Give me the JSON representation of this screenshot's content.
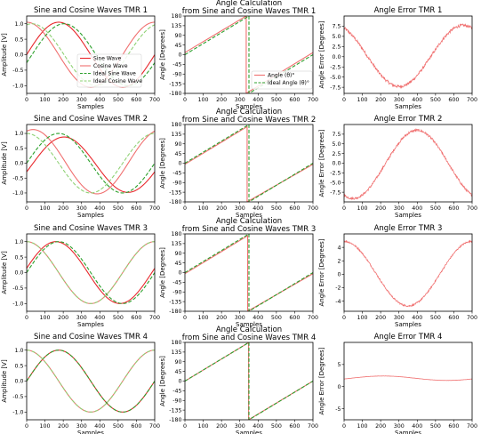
{
  "figure": {
    "x_label": "Samples",
    "x_ticks": [
      0,
      100,
      200,
      300,
      400,
      500,
      600,
      700
    ],
    "colors": {
      "sine": "#e8282d",
      "cosine": "#f07070",
      "ideal_sine": "#2ca02c",
      "ideal_cosine": "#8fd175",
      "angle": "#f07070",
      "ideal_angle": "#2ca02c",
      "error": "#f07070"
    }
  },
  "chart_data": [
    {
      "type": "line",
      "row": 0,
      "title": "Sine and Cosine Waves TMR 1",
      "xlabel": "Samples",
      "ylabel": "Amplitude [V]",
      "xlim": [
        0,
        700
      ],
      "ylim": [
        -1.25,
        1.25
      ],
      "yticks": [
        -1.0,
        -0.5,
        0.0,
        0.5,
        1.0
      ],
      "series": [
        {
          "name": "Sine Wave",
          "color": "#e8282d",
          "amplitude": 1.05,
          "period": 700,
          "phase_deg": 0,
          "offset": 0
        },
        {
          "name": "Cosine Wave",
          "color": "#f07070",
          "amplitude": 1.05,
          "period": 700,
          "phase_deg": 90,
          "offset": 0
        },
        {
          "name": "Ideal Sine Wave",
          "color": "#2ca02c",
          "dash": true,
          "amplitude": 1.0,
          "period": 700,
          "phase_deg": -15,
          "offset": 0
        },
        {
          "name": "Ideal Cosine Wave",
          "color": "#8fd175",
          "dash": true,
          "amplitude": 1.0,
          "period": 700,
          "phase_deg": 75,
          "offset": 0
        }
      ],
      "legend": {
        "placement": "lower-left",
        "entries": [
          "Sine Wave",
          "Cosine Wave",
          "Ideal Sine Wave",
          "Ideal Cosine Wave"
        ]
      }
    },
    {
      "type": "line",
      "row": 0,
      "title": "Angle Calculation\nfrom Sine and Cosine Waves TMR 1",
      "xlabel": "Samples",
      "ylabel": "Angle [Degrees]",
      "xlim": [
        0,
        700
      ],
      "ylim": [
        -180,
        180
      ],
      "yticks": [
        180,
        135,
        90,
        45,
        0,
        -45,
        -90,
        -135,
        -180
      ],
      "series": [
        {
          "name": "Angle (θ)°",
          "color": "#f07070",
          "wrap_at": 335,
          "start": 10
        },
        {
          "name": "Ideal Angle (θ)°",
          "color": "#2ca02c",
          "dash": true,
          "wrap_at": 350,
          "start": 0
        }
      ],
      "legend": {
        "placement": "lower-right",
        "entries": [
          "Angle (θ)°",
          "Ideal Angle (θ)°"
        ]
      }
    },
    {
      "type": "line",
      "row": 0,
      "title": "Angle Error TMR 1",
      "xlabel": "Samples",
      "ylabel": "Angle Error [Degrees]",
      "xlim": [
        0,
        700
      ],
      "ylim": [
        -9,
        10
      ],
      "yticks": [
        -7.5,
        -5.0,
        -2.5,
        0.0,
        2.5,
        5.0,
        7.5
      ],
      "series": [
        {
          "name": "Angle Error",
          "color": "#f07070",
          "amplitude": 7.5,
          "period": 700,
          "phase_deg": 115,
          "offset": 0.2,
          "noise": 0.35
        }
      ]
    },
    {
      "type": "line",
      "row": 1,
      "title": "Sine and Cosine Waves TMR 2",
      "xlabel": "Samples",
      "ylabel": "Amplitude [V]",
      "xlim": [
        0,
        700
      ],
      "ylim": [
        -1.3,
        1.3
      ],
      "yticks": [
        -1.0,
        -0.5,
        0.0,
        0.5,
        1.0
      ],
      "series": [
        {
          "name": "Sine Wave",
          "color": "#e8282d",
          "amplitude": 0.93,
          "period": 700,
          "phase_deg": -15,
          "offset": -0.05
        },
        {
          "name": "Cosine Wave",
          "color": "#f07070",
          "amplitude": 1.08,
          "period": 700,
          "phase_deg": 72,
          "offset": 0.05
        },
        {
          "name": "Ideal Sine Wave",
          "color": "#2ca02c",
          "dash": true,
          "amplitude": 1.0,
          "period": 700,
          "phase_deg": 0,
          "offset": 0
        },
        {
          "name": "Ideal Cosine Wave",
          "color": "#8fd175",
          "dash": true,
          "amplitude": 1.0,
          "period": 700,
          "phase_deg": 90,
          "offset": 0
        }
      ]
    },
    {
      "type": "line",
      "row": 1,
      "title": "Angle Calculation\nfrom Sine and Cosine Waves TMR 2",
      "xlabel": "Samples",
      "ylabel": "Angle [Degrees]",
      "xlim": [
        0,
        700
      ],
      "ylim": [
        -180,
        180
      ],
      "yticks": [
        180,
        135,
        90,
        45,
        0,
        -45,
        -90,
        -135,
        -180
      ],
      "series": [
        {
          "name": "Angle (θ)°",
          "color": "#f07070",
          "wrap_at": 340,
          "start": -5
        },
        {
          "name": "Ideal Angle (θ)°",
          "color": "#2ca02c",
          "dash": true,
          "wrap_at": 350,
          "start": 0
        }
      ]
    },
    {
      "type": "line",
      "row": 1,
      "title": "Angle Error TMR 2",
      "xlabel": "Samples",
      "ylabel": "Angle Error [Degrees]",
      "xlim": [
        0,
        700
      ],
      "ylim": [
        -10,
        10
      ],
      "yticks": [
        -7.5,
        -5.0,
        -2.5,
        0.0,
        2.5,
        5.0,
        7.5
      ],
      "series": [
        {
          "name": "Angle Error",
          "color": "#f07070",
          "amplitude": 8.8,
          "period": 700,
          "phase_deg": -115,
          "offset": -0.3,
          "noise": 0.3
        }
      ]
    },
    {
      "type": "line",
      "row": 2,
      "title": "Sine and Cosine Waves TMR 3",
      "xlabel": "Samples",
      "ylabel": "Amplitude [V]",
      "xlim": [
        0,
        700
      ],
      "ylim": [
        -1.25,
        1.25
      ],
      "yticks": [
        -1.0,
        -0.5,
        0.0,
        0.5,
        1.0
      ],
      "series": [
        {
          "name": "Sine Wave",
          "color": "#e8282d",
          "amplitude": 1.0,
          "period": 700,
          "phase_deg": 8,
          "offset": 0
        },
        {
          "name": "Cosine Wave",
          "color": "#f07070",
          "amplitude": 1.0,
          "period": 700,
          "phase_deg": 90,
          "offset": 0
        },
        {
          "name": "Ideal Sine Wave",
          "color": "#2ca02c",
          "dash": true,
          "amplitude": 1.0,
          "period": 700,
          "phase_deg": 0,
          "offset": 0
        },
        {
          "name": "Ideal Cosine Wave",
          "color": "#8fd175",
          "dash": true,
          "amplitude": 1.0,
          "period": 700,
          "phase_deg": 90,
          "offset": 0
        }
      ]
    },
    {
      "type": "line",
      "row": 2,
      "title": "Angle Calculation\nfrom Sine and Cosine Waves TMR 3",
      "xlabel": "Samples",
      "ylabel": "Angle [Degrees]",
      "xlim": [
        0,
        700
      ],
      "ylim": [
        -180,
        180
      ],
      "yticks": [
        180,
        135,
        90,
        45,
        0,
        -45,
        -90,
        -135,
        -180
      ],
      "series": [
        {
          "name": "Angle (θ)°",
          "color": "#f07070",
          "wrap_at": 343,
          "start": -5
        },
        {
          "name": "Ideal Angle (θ)°",
          "color": "#2ca02c",
          "dash": true,
          "wrap_at": 350,
          "start": 0
        }
      ]
    },
    {
      "type": "line",
      "row": 2,
      "title": "Angle Error TMR 3",
      "xlabel": "Samples",
      "ylabel": "Angle Error [Degrees]",
      "xlim": [
        0,
        700
      ],
      "ylim": [
        -5.5,
        6
      ],
      "yticks": [
        -4,
        -2,
        0,
        2,
        4
      ],
      "series": [
        {
          "name": "Angle Error",
          "color": "#f07070",
          "amplitude": 4.8,
          "period": 700,
          "phase_deg": 90,
          "offset": 0.1,
          "noise": 0.12
        }
      ]
    },
    {
      "type": "line",
      "row": 3,
      "title": "Sine and Cosine Waves TMR 4",
      "xlabel": "Samples",
      "ylabel": "Amplitude [V]",
      "xlim": [
        0,
        700
      ],
      "ylim": [
        -1.25,
        1.25
      ],
      "yticks": [
        -1.0,
        -0.5,
        0.0,
        0.5,
        1.0
      ],
      "series": [
        {
          "name": "Sine Wave",
          "color": "#e8282d",
          "amplitude": 1.0,
          "period": 700,
          "phase_deg": 0,
          "offset": 0
        },
        {
          "name": "Cosine Wave",
          "color": "#f07070",
          "amplitude": 1.0,
          "period": 700,
          "phase_deg": 90,
          "offset": 0
        },
        {
          "name": "Ideal Sine Wave",
          "color": "#2ca02c",
          "dash": true,
          "amplitude": 1.0,
          "period": 700,
          "phase_deg": 0,
          "offset": 0
        },
        {
          "name": "Ideal Cosine Wave",
          "color": "#8fd175",
          "dash": true,
          "amplitude": 1.0,
          "period": 700,
          "phase_deg": 90,
          "offset": 0
        }
      ]
    },
    {
      "type": "line",
      "row": 3,
      "title": "Angle Calculation\nfrom Sine and Cosine Waves TMR 4",
      "xlabel": "Samples",
      "ylabel": "Angle [Degrees]",
      "xlim": [
        0,
        700
      ],
      "ylim": [
        -180,
        180
      ],
      "yticks": [
        180,
        135,
        90,
        45,
        0,
        -45,
        -90,
        -135,
        -180
      ],
      "series": [
        {
          "name": "Angle (θ)°",
          "color": "#f07070",
          "wrap_at": 348,
          "start": 0
        },
        {
          "name": "Ideal Angle (θ)°",
          "color": "#2ca02c",
          "dash": true,
          "wrap_at": 350,
          "start": 0
        }
      ]
    },
    {
      "type": "line",
      "row": 3,
      "title": "Angle Error TMR 4",
      "xlabel": "Samples",
      "ylabel": "Angle Error [Degrees]",
      "xlim": [
        0,
        700
      ],
      "ylim": [
        -7.5,
        10
      ],
      "yticks": [
        -5,
        0,
        5
      ],
      "series": [
        {
          "name": "Angle Error",
          "color": "#f07070",
          "amplitude": 0.5,
          "period": 700,
          "phase_deg": -20,
          "offset": 1.9,
          "noise": 0.02
        }
      ]
    }
  ]
}
